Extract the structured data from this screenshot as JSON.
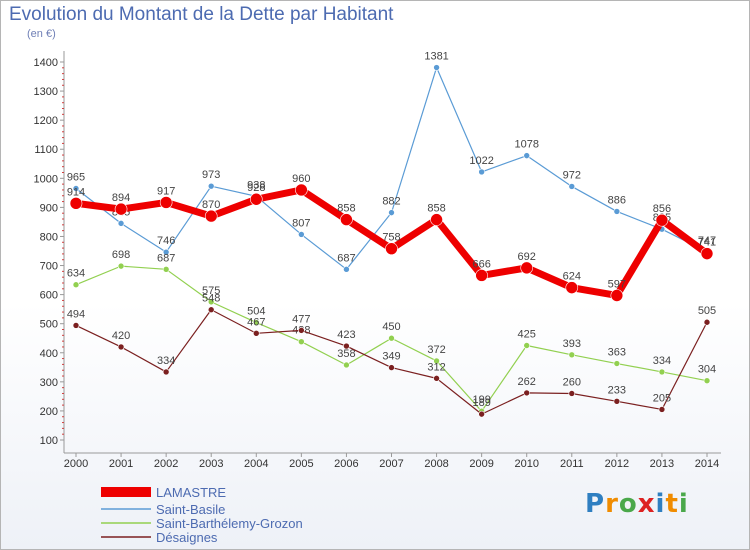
{
  "title": "Evolution du Montant de la Dette par Habitant",
  "unit": "(en €)",
  "logo": "Proxiti",
  "colors": {
    "title": "#4d6bb1",
    "axis": "#999999"
  },
  "chart_data": {
    "type": "line",
    "x": [
      2000,
      2001,
      2002,
      2003,
      2004,
      2005,
      2006,
      2007,
      2008,
      2009,
      2010,
      2011,
      2012,
      2013,
      2014
    ],
    "ylim": [
      100,
      1400
    ],
    "yticks": [
      100,
      200,
      300,
      400,
      500,
      600,
      700,
      800,
      900,
      1000,
      1100,
      1200,
      1300,
      1400
    ],
    "grid": false,
    "legend_position": "bottom-left",
    "series": [
      {
        "name": "LAMASTRE",
        "color": "#ee0000",
        "values": [
          914,
          894,
          917,
          870,
          928,
          960,
          858,
          758,
          858,
          666,
          692,
          624,
          597,
          856,
          741
        ]
      },
      {
        "name": "Saint-Basile",
        "color": "#5a9bd5",
        "values": [
          965,
          845,
          746,
          973,
          938,
          807,
          687,
          882,
          1381,
          1022,
          1078,
          972,
          886,
          825,
          747
        ]
      },
      {
        "name": "Saint-Barthélemy-Grozon",
        "color": "#92d050",
        "values": [
          634,
          698,
          687,
          575,
          504,
          438,
          358,
          450,
          372,
          199,
          425,
          393,
          363,
          334,
          304
        ]
      },
      {
        "name": "Désaignes",
        "color": "#7b2020",
        "values": [
          494,
          420,
          334,
          548,
          467,
          477,
          423,
          349,
          312,
          189,
          262,
          260,
          233,
          205,
          505
        ]
      }
    ]
  }
}
